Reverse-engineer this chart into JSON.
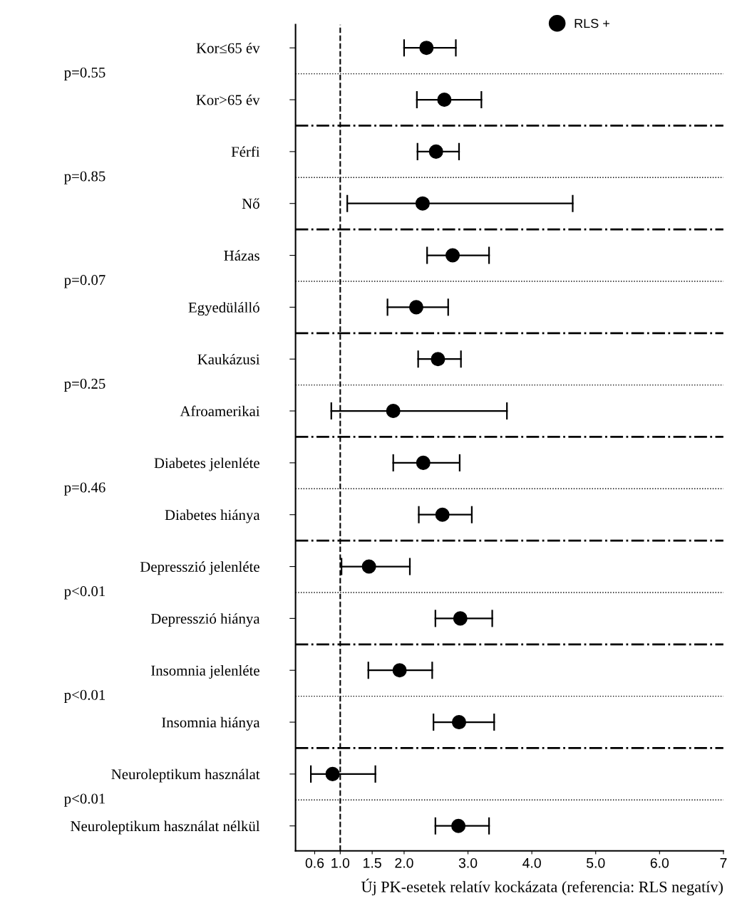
{
  "chart_data": {
    "type": "scatter",
    "orientation": "horizontal",
    "categories": [
      "Kor≤65 év",
      "Kor>65 év",
      "Férfi",
      "Nő",
      "Házas",
      "Egyedülálló",
      "Kaukázusi",
      "Afroamerikai",
      "Diabetes jelenléte",
      "Diabetes hiánya",
      "Depresszió jelenléte",
      "Depresszió hiánya",
      "Insomnia jelenléte",
      "Insomnia hiánya",
      "Neuroleptikum használat",
      "Neuroleptikum használat nélkül"
    ],
    "series": [
      {
        "name": "RLS +",
        "color": "#000000",
        "values": [
          2.35,
          2.63,
          2.5,
          2.29,
          2.76,
          2.19,
          2.53,
          1.83,
          2.3,
          2.6,
          1.45,
          2.88,
          1.93,
          2.86,
          0.88,
          2.85
        ],
        "errors": [
          [
            2.0,
            2.81
          ],
          [
            2.2,
            3.21
          ],
          [
            2.21,
            2.86
          ],
          [
            1.11,
            4.64
          ],
          [
            2.36,
            3.33
          ],
          [
            1.74,
            2.69
          ],
          [
            2.22,
            2.89
          ],
          [
            0.86,
            3.61
          ],
          [
            1.83,
            2.87
          ],
          [
            2.23,
            3.06
          ],
          [
            1.02,
            2.09
          ],
          [
            2.49,
            3.38
          ],
          [
            1.44,
            2.44
          ],
          [
            2.46,
            3.41
          ],
          [
            0.54,
            1.55
          ],
          [
            2.49,
            3.33
          ]
        ]
      }
    ],
    "xlabel": "Új PK-esetek relatív kockázata (referencia: RLS negatív)",
    "xlim": [
      0.3,
      7
    ],
    "xticks": [
      0.6,
      {
        "value": 1.0,
        "label": "1.0"
      },
      1.5,
      {
        "value": 2.0,
        "label": "2.0"
      },
      {
        "value": 3.0,
        "label": "3.0"
      },
      {
        "value": 4.0,
        "label": "4.0"
      },
      {
        "value": 5.0,
        "label": "5.0"
      },
      {
        "value": 6.0,
        "label": "6.0"
      },
      7
    ],
    "annotations": [
      "p=0.55",
      "p=0.85",
      "p=0.07",
      "p=0.25",
      "p=0.46",
      "p<0.01",
      "p<0.01",
      "p<0.01"
    ],
    "ref_lines": [
      {
        "axis": "x",
        "value": 1.0,
        "line_style": "dashed",
        "color": "#000000"
      }
    ],
    "marker": "circle",
    "line_style": "solid",
    "legend": "top right",
    "grid": false
  }
}
